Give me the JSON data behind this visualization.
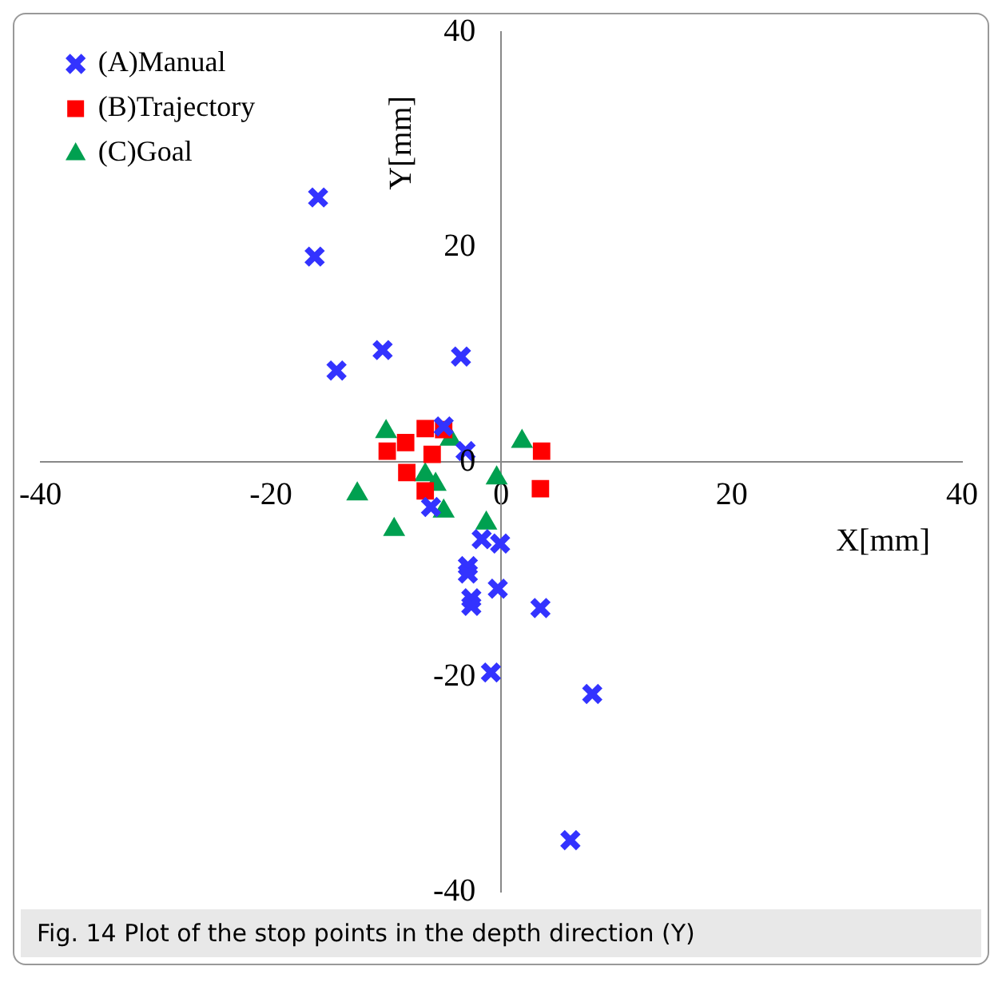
{
  "chart_data": {
    "type": "scatter",
    "xlabel": "X[mm]",
    "ylabel": "Y[mm]",
    "xlim": [
      -40,
      40
    ],
    "ylim": [
      -40,
      40
    ],
    "xticks": [
      -40,
      -20,
      0,
      20,
      40
    ],
    "yticks": [
      -40,
      -20,
      0,
      20,
      40
    ],
    "grid": false,
    "legend": "top left",
    "annotations": [
      "Fig. 14 Plot of the stop points in the depth direction (Y)"
    ],
    "series": [
      {
        "name": "(A)Manual",
        "color": "#3333ff",
        "marker": "cross",
        "x": [
          -15.9,
          -16.2,
          -14.3,
          -10.3,
          -3.5,
          -5,
          -3.1,
          -6.1,
          -1.7,
          -0.1,
          -2.9,
          -2.9,
          -2.6,
          -2.6,
          -0.3,
          3.4,
          -0.9,
          7.9,
          6
        ],
        "values": [
          24.6,
          19.1,
          8.5,
          10.4,
          9.8,
          3.3,
          1,
          -4.2,
          -7.2,
          -7.6,
          -9.7,
          -10.4,
          -12.7,
          -13.4,
          -11.8,
          -13.6,
          -19.6,
          -21.6,
          -35.2
        ]
      },
      {
        "name": "(B)Trajectory",
        "color": "#ff0000",
        "marker": "square",
        "x": [
          -9.9,
          -8.3,
          -6.6,
          -5,
          -6,
          -8.2,
          -6.6,
          3.5,
          3.4
        ],
        "values": [
          1,
          1.8,
          3.1,
          3,
          0.7,
          -1,
          -2.7,
          1,
          -2.5
        ]
      },
      {
        "name": "(C)Goal",
        "color": "#00a050",
        "marker": "triangle",
        "x": [
          -10,
          -4.4,
          1.8,
          -0.4,
          -12.5,
          -6.6,
          -5.7,
          -5,
          -9.3,
          -1.3
        ],
        "values": [
          2.8,
          2.1,
          1.9,
          -1.5,
          -3,
          -1.2,
          -2.1,
          -4.6,
          -6.3,
          -5.7
        ]
      }
    ]
  }
}
